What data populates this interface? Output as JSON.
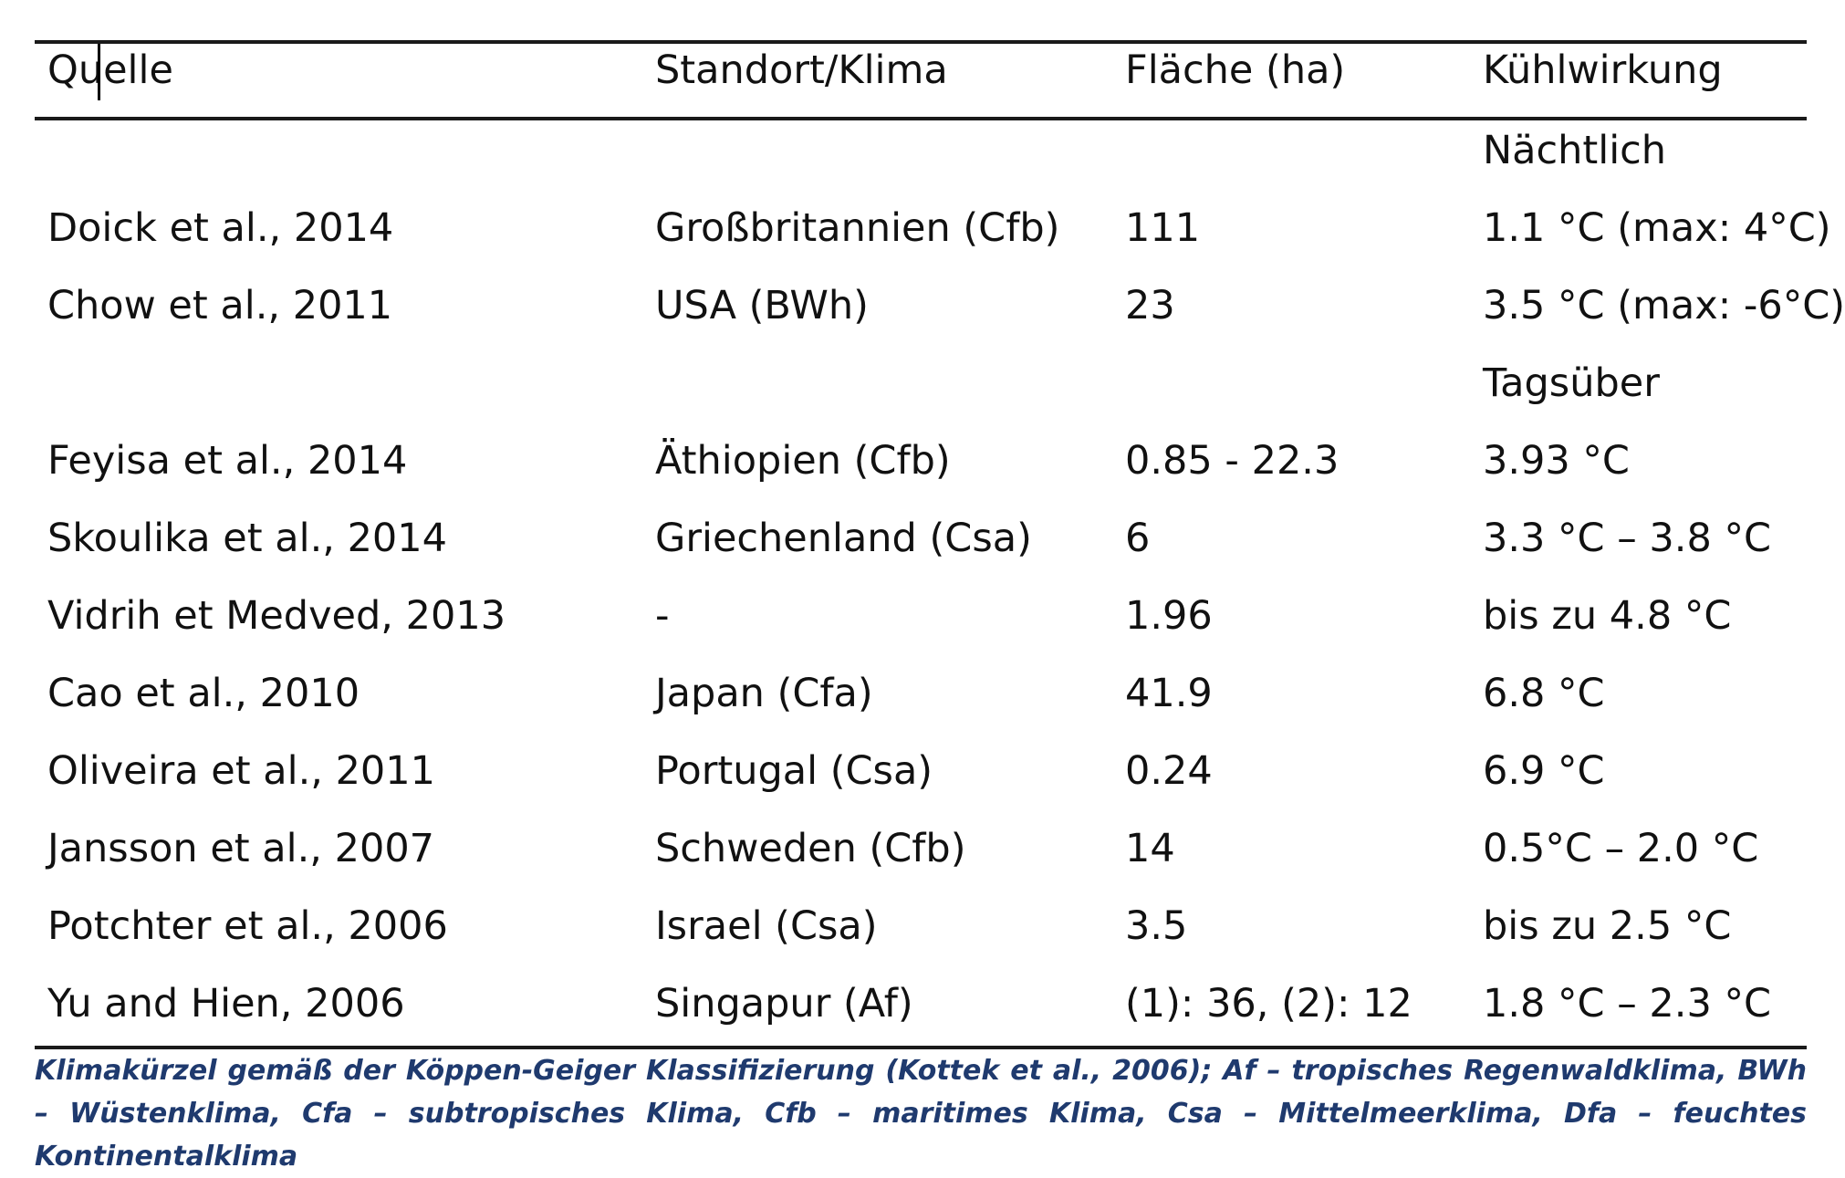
{
  "table": {
    "headers": [
      "Quelle",
      "Standort/Klima",
      "Fläche (ha)",
      "Kühlwirkung"
    ],
    "rows": [
      {
        "quelle": "",
        "standort": "",
        "flaeche": "",
        "kuehl": "Nächtlich"
      },
      {
        "quelle": "Doick et al., 2014",
        "standort": "Großbritannien (Cfb)",
        "flaeche": "111",
        "kuehl": "1.1 °C (max: 4°C)"
      },
      {
        "quelle": "Chow et al., 2011",
        "standort": "USA (BWh)",
        "flaeche": "23",
        "kuehl": "3.5 °C (max: -6°C)"
      },
      {
        "quelle": "",
        "standort": "",
        "flaeche": "",
        "kuehl": "Tagsüber"
      },
      {
        "quelle": "Feyisa et al., 2014",
        "standort": "Äthiopien (Cfb)",
        "flaeche": "0.85 - 22.3",
        "kuehl": "3.93 °C"
      },
      {
        "quelle": "Skoulika et al., 2014",
        "standort": "Griechenland (Csa)",
        "flaeche": "6",
        "kuehl": "3.3 °C – 3.8 °C"
      },
      {
        "quelle": "Vidrih et Medved, 2013",
        "standort": "-",
        "flaeche": "1.96",
        "kuehl": "bis zu 4.8 °C"
      },
      {
        "quelle": "Cao et al., 2010",
        "standort": "Japan (Cfa)",
        "flaeche": "41.9",
        "kuehl": "6.8 °C"
      },
      {
        "quelle": "Oliveira et al., 2011",
        "standort": "Portugal (Csa)",
        "flaeche": "0.24",
        "kuehl": "6.9 °C"
      },
      {
        "quelle": "Jansson et al., 2007",
        "standort": "Schweden (Cfb)",
        "flaeche": "14",
        "kuehl": "0.5°C – 2.0 °C"
      },
      {
        "quelle": "Potchter et al., 2006",
        "standort": "Israel (Csa)",
        "flaeche": "3.5",
        "kuehl": "bis zu 2.5 °C"
      },
      {
        "quelle": "Yu and Hien, 2006",
        "standort": "Singapur (Af)",
        "flaeche": "(1): 36, (2): 12",
        "kuehl": "1.8 °C – 2.3 °C"
      }
    ]
  },
  "footnote": "Klimakürzel gemäß der Köppen-Geiger Klassifizierung (Kottek et al., 2006); Af – tropisches Regenwaldklima, BWh – Wüstenklima, Cfa – subtropisches Klima, Cfb – maritimes Klima, Csa – Mittelmeerklima, Dfa – feuchtes Kontinentalklima"
}
